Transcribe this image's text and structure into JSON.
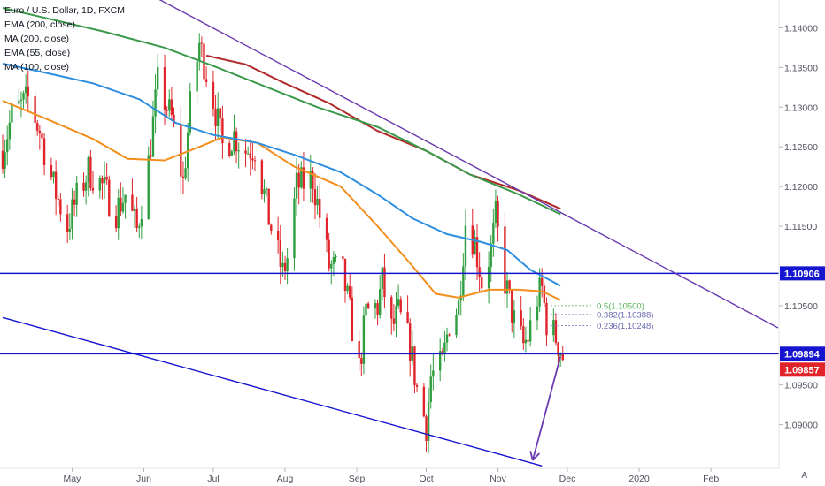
{
  "legend": {
    "title": "Euro / U.S. Dollar, 1D, FXCM",
    "studies": [
      "EMA (200, close)",
      "MA (200, close)",
      "EMA (55, close)",
      "MA (100, close)"
    ]
  },
  "scale_button": "A",
  "colors": {
    "up": "#2e9e3e",
    "down": "#e0242a",
    "ema200": "#b02a2a",
    "ma200": "#3a9a4a",
    "ema55": "#f28e1c",
    "ma100": "#2e8ee0",
    "trend_line": "#6a3bb0",
    "channel_line": "#1515d0",
    "horizontal": "#1515d0",
    "fib_05": "#4caf50",
    "fib_0382": "#6a6ab0",
    "fib_0236": "#6a6ab0",
    "tag_blue": "#1515d0",
    "tag_red": "#e0242a"
  },
  "chart_data": {
    "type": "candlestick",
    "symbol": "Euro / U.S. Dollar, 1D, FXCM",
    "y_axis": {
      "min": 1.0845,
      "max": 1.1435,
      "ticks": [
        "1.14000",
        "1.13500",
        "1.13000",
        "1.12500",
        "1.12000",
        "1.11500",
        "1.10500",
        "1.09500",
        "1.09000"
      ],
      "tick_values": [
        1.14,
        1.135,
        1.13,
        1.125,
        1.12,
        1.115,
        1.105,
        1.095,
        1.09
      ]
    },
    "x_axis": {
      "labels": [
        "May",
        "Jun",
        "Jul",
        "Aug",
        "Sep",
        "Oct",
        "Nov",
        "Dec",
        "2020",
        "Feb"
      ],
      "label_dates": [
        "2019-05-01",
        "2019-06-01",
        "2019-07-01",
        "2019-08-01",
        "2019-09-01",
        "2019-10-01",
        "2019-11-01",
        "2019-12-01",
        "2020-01-01",
        "2020-02-01"
      ]
    },
    "price_tags": [
      {
        "label": "1.10906",
        "value": 1.10906,
        "color": "blue"
      },
      {
        "label": "1.09894",
        "value": 1.09894,
        "color": "blue"
      },
      {
        "label": "1.09857",
        "value": 1.09857,
        "color": "red"
      }
    ],
    "horizontal_levels": [
      1.10906,
      1.09894
    ],
    "fib_levels": [
      {
        "label": "0.5(1.10500)",
        "value": 1.105
      },
      {
        "label": "0.382(1.10388)",
        "value": 1.10388
      },
      {
        "label": "0.236(1.10248)",
        "value": 1.10248
      }
    ],
    "trend_lines": [
      {
        "name": "descending resistance",
        "from": [
          "2019-06-01",
          1.1446
        ],
        "to": [
          "2020-03-01",
          1.1022
        ]
      },
      {
        "name": "channel support",
        "from": [
          "2019-04-01",
          1.1035
        ],
        "to": [
          "2019-11-20",
          1.0848
        ]
      }
    ],
    "arrow": {
      "from": [
        "2019-11-28",
        1.0986
      ],
      "to": [
        "2019-11-16",
        1.0855
      ]
    },
    "moving_averages": [
      {
        "name": "EMA (200, close)",
        "points": [
          [
            "2019-06-28",
            1.1365
          ],
          [
            "2019-07-15",
            1.1354
          ],
          [
            "2019-08-01",
            1.133
          ],
          [
            "2019-08-20",
            1.1305
          ],
          [
            "2019-09-10",
            1.127
          ],
          [
            "2019-10-01",
            1.1245
          ],
          [
            "2019-10-20",
            1.1215
          ],
          [
            "2019-11-10",
            1.1195
          ],
          [
            "2019-11-28",
            1.1172
          ]
        ]
      },
      {
        "name": "MA (200, close)",
        "points": [
          [
            "2019-04-01",
            1.1425
          ],
          [
            "2019-04-20",
            1.1412
          ],
          [
            "2019-05-15",
            1.1395
          ],
          [
            "2019-06-10",
            1.1375
          ],
          [
            "2019-07-01",
            1.1352
          ],
          [
            "2019-07-20",
            1.133
          ],
          [
            "2019-08-15",
            1.13
          ],
          [
            "2019-09-10",
            1.1275
          ],
          [
            "2019-10-01",
            1.1245
          ],
          [
            "2019-10-20",
            1.1215
          ],
          [
            "2019-11-10",
            1.119
          ],
          [
            "2019-11-28",
            1.1165
          ]
        ]
      },
      {
        "name": "EMA (55, close)",
        "points": [
          [
            "2019-04-01",
            1.1308
          ],
          [
            "2019-04-20",
            1.1285
          ],
          [
            "2019-05-10",
            1.126
          ],
          [
            "2019-05-25",
            1.1235
          ],
          [
            "2019-06-10",
            1.1233
          ],
          [
            "2019-06-25",
            1.125
          ],
          [
            "2019-07-05",
            1.1262
          ],
          [
            "2019-07-20",
            1.1255
          ],
          [
            "2019-08-05",
            1.1225
          ],
          [
            "2019-08-25",
            1.12
          ],
          [
            "2019-09-10",
            1.115
          ],
          [
            "2019-09-25",
            1.11
          ],
          [
            "2019-10-05",
            1.1065
          ],
          [
            "2019-10-15",
            1.106
          ],
          [
            "2019-10-28",
            1.107
          ],
          [
            "2019-11-10",
            1.107
          ],
          [
            "2019-11-20",
            1.1068
          ],
          [
            "2019-11-28",
            1.1057
          ]
        ]
      },
      {
        "name": "MA (100, close)",
        "points": [
          [
            "2019-04-01",
            1.1355
          ],
          [
            "2019-04-20",
            1.1343
          ],
          [
            "2019-05-10",
            1.133
          ],
          [
            "2019-05-30",
            1.131
          ],
          [
            "2019-06-15",
            1.128
          ],
          [
            "2019-07-01",
            1.1265
          ],
          [
            "2019-07-20",
            1.1255
          ],
          [
            "2019-08-05",
            1.124
          ],
          [
            "2019-08-25",
            1.1218
          ],
          [
            "2019-09-10",
            1.119
          ],
          [
            "2019-09-25",
            1.116
          ],
          [
            "2019-10-10",
            1.114
          ],
          [
            "2019-10-25",
            1.113
          ],
          [
            "2019-11-05",
            1.112
          ],
          [
            "2019-11-15",
            1.1095
          ],
          [
            "2019-11-28",
            1.1075
          ]
        ]
      }
    ],
    "anchors": [
      [
        "2019-04-01",
        1.1245
      ],
      [
        "2019-04-05",
        1.129
      ],
      [
        "2019-04-12",
        1.131
      ],
      [
        "2019-04-17",
        1.127
      ],
      [
        "2019-04-23",
        1.12
      ],
      [
        "2019-04-29",
        1.115
      ],
      [
        "2019-05-03",
        1.1185
      ],
      [
        "2019-05-08",
        1.122
      ],
      [
        "2019-05-13",
        1.1205
      ],
      [
        "2019-05-20",
        1.117
      ],
      [
        "2019-05-24",
        1.119
      ],
      [
        "2019-05-29",
        1.1145
      ],
      [
        "2019-06-03",
        1.123
      ],
      [
        "2019-06-07",
        1.133
      ],
      [
        "2019-06-13",
        1.1285
      ],
      [
        "2019-06-18",
        1.1205
      ],
      [
        "2019-06-21",
        1.13
      ],
      [
        "2019-06-25",
        1.138
      ],
      [
        "2019-07-01",
        1.131
      ],
      [
        "2019-07-05",
        1.125
      ],
      [
        "2019-07-10",
        1.1265
      ],
      [
        "2019-07-15",
        1.1245
      ],
      [
        "2019-07-19",
        1.125
      ],
      [
        "2019-07-25",
        1.116
      ],
      [
        "2019-07-31",
        1.109
      ],
      [
        "2019-08-02",
        1.111
      ],
      [
        "2019-08-06",
        1.12
      ],
      [
        "2019-08-13",
        1.121
      ],
      [
        "2019-08-20",
        1.11
      ],
      [
        "2019-08-26",
        1.109
      ],
      [
        "2019-08-29",
        1.104
      ],
      [
        "2019-09-02",
        1.097
      ],
      [
        "2019-09-05",
        1.104
      ],
      [
        "2019-09-10",
        1.105
      ],
      [
        "2019-09-12",
        1.108
      ],
      [
        "2019-09-16",
        1.102
      ],
      [
        "2019-09-19",
        1.104
      ],
      [
        "2019-09-24",
        1.1
      ],
      [
        "2019-09-27",
        1.0945
      ],
      [
        "2019-10-01",
        1.09
      ],
      [
        "2019-10-03",
        1.096
      ],
      [
        "2019-10-08",
        1.0975
      ],
      [
        "2019-10-11",
        1.103
      ],
      [
        "2019-10-15",
        1.105
      ],
      [
        "2019-10-18",
        1.1155
      ],
      [
        "2019-10-22",
        1.113
      ],
      [
        "2019-10-25",
        1.108
      ],
      [
        "2019-10-29",
        1.112
      ],
      [
        "2019-10-31",
        1.116
      ],
      [
        "2019-11-04",
        1.108
      ],
      [
        "2019-11-08",
        1.103
      ],
      [
        "2019-11-12",
        1.1
      ],
      [
        "2019-11-14",
        1.101
      ],
      [
        "2019-11-18",
        1.106
      ],
      [
        "2019-11-20",
        1.107
      ],
      [
        "2019-11-22",
        1.103
      ],
      [
        "2019-11-26",
        1.101
      ],
      [
        "2019-11-28",
        1.0995
      ],
      [
        "2019-11-29",
        1.0986
      ]
    ]
  }
}
